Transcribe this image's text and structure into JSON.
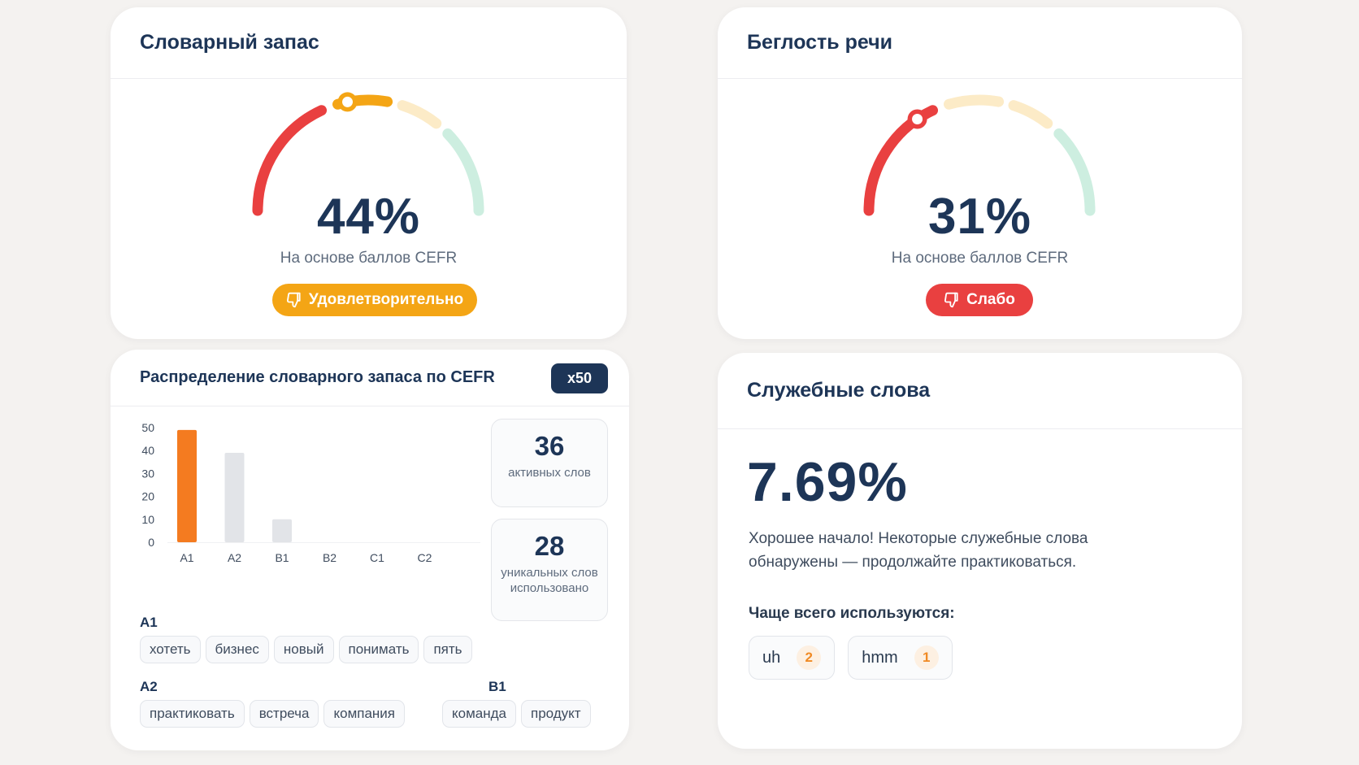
{
  "vocab": {
    "title": "Словарный запас",
    "value": "44%",
    "percent": 44,
    "subtitle": "На основе баллов CEFR",
    "badge": "Удовлетворительно"
  },
  "fluency": {
    "title": "Беглость речи",
    "value": "31%",
    "percent": 31,
    "subtitle": "На основе баллов CEFR",
    "badge": "Слабо"
  },
  "colors": {
    "red": "#e94040",
    "orange": "#f4a515",
    "orange_faint": "#fcebc7",
    "green_faint": "#cdeee0",
    "bar_active": "#f47b20",
    "bar_inactive": "#e2e4e8",
    "navy": "#1d3557"
  },
  "distribution": {
    "title": "Распределение словарного запаса по CEFR",
    "multiplier": "x50",
    "stats": {
      "active_value": "36",
      "active_label": "активных слов",
      "unique_value": "28",
      "unique_label": "уникальных слов использовано"
    },
    "groups": {
      "a1": {
        "label": "A1",
        "words": [
          "хотеть",
          "бизнес",
          "новый",
          "понимать",
          "пять"
        ]
      },
      "a2": {
        "label": "A2",
        "words": [
          "практиковать",
          "встреча",
          "компания"
        ]
      },
      "b1": {
        "label": "B1",
        "words": [
          "команда",
          "продукт"
        ]
      }
    }
  },
  "chart_data": {
    "type": "bar",
    "categories": [
      "A1",
      "A2",
      "B1",
      "B2",
      "C1",
      "C2"
    ],
    "values": [
      49,
      39,
      10,
      0,
      0,
      0
    ],
    "ylim": [
      0,
      50
    ],
    "yticks": [
      "0",
      "10",
      "20",
      "30",
      "40",
      "50"
    ],
    "highlight_index": 0,
    "grid": false,
    "title": "",
    "xlabel": "",
    "ylabel": ""
  },
  "function_words": {
    "title": "Служебные слова",
    "value": "7.69%",
    "description": "Хорошее начало! Некоторые служебные слова обнаружены — продолжайте практиковаться.",
    "frequent_title": "Чаще всего используются:",
    "words": [
      {
        "word": "uh",
        "count": "2"
      },
      {
        "word": "hmm",
        "count": "1"
      }
    ]
  }
}
